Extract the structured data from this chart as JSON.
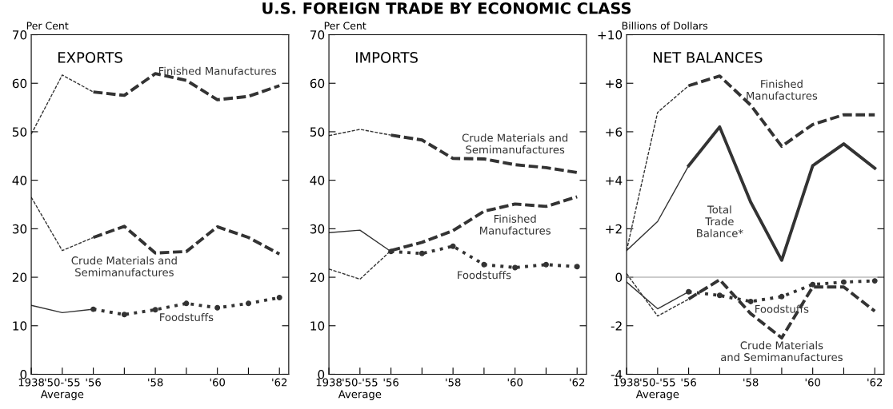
{
  "chart_data": [
    {
      "type": "line",
      "title": "EXPORTS",
      "ylabel": "Per Cent",
      "annotations": [
        "U.S. FOREIGN TRADE BY ECONOMIC CLASS"
      ],
      "categories": [
        "1938",
        "'50-'55\nAverage",
        "'56",
        null,
        "'58",
        null,
        "'60",
        null,
        "'62"
      ],
      "ylim": [
        0,
        70
      ],
      "yticks": [
        0,
        10,
        20,
        30,
        40,
        50,
        60,
        70
      ],
      "series": [
        {
          "color": "#333333",
          "line_style": "dashed",
          "values": [
            49.5,
            61.7,
            58.2,
            null,
            null,
            null,
            null,
            null,
            null
          ]
        },
        {
          "name": "Finished Manufactures",
          "color": "#333333",
          "line_style": "dashed",
          "values": [
            null,
            null,
            58.2,
            57.5,
            62,
            60.6,
            56.6,
            57.3,
            59.5
          ]
        },
        {
          "color": "#333333",
          "line_style": "dashed",
          "values": [
            36.5,
            25.5,
            28.2,
            null,
            null,
            null,
            null,
            null,
            null
          ]
        },
        {
          "name": "Crude Materials and\nSemimanufactures",
          "color": "#333333",
          "line_style": "dashed",
          "values": [
            null,
            null,
            28.2,
            30.5,
            25,
            25.3,
            30.4,
            28.2,
            24.8
          ]
        },
        {
          "color": "#333333",
          "line_style": "solid",
          "values": [
            14.2,
            12.7,
            13.4,
            null,
            null,
            null,
            null,
            null,
            null
          ]
        },
        {
          "name": "Foodstuffs",
          "color": "#333333",
          "line_style": "dotted",
          "marker": "circle",
          "values": [
            null,
            null,
            13.4,
            12.3,
            13.3,
            14.6,
            13.7,
            14.6,
            15.8
          ]
        }
      ]
    },
    {
      "type": "line",
      "title": "IMPORTS",
      "ylabel": "Per Cent",
      "categories": [
        "1938",
        "'50-'55\nAverage",
        "'56",
        null,
        "'58",
        null,
        "'60",
        null,
        "'62"
      ],
      "ylim": [
        0,
        70
      ],
      "yticks": [
        0,
        10,
        20,
        30,
        40,
        50,
        60,
        70
      ],
      "series": [
        {
          "color": "#333333",
          "line_style": "dashed",
          "values": [
            49.2,
            50.5,
            49.3,
            null,
            null,
            null,
            null,
            null,
            null
          ]
        },
        {
          "name": "Crude Materials and\nSemimanufactures",
          "color": "#333333",
          "line_style": "dashed",
          "values": [
            null,
            null,
            49.3,
            48.3,
            44.5,
            44.4,
            43.2,
            42.6,
            41.6
          ]
        },
        {
          "color": "#333333",
          "line_style": "dashed",
          "values": [
            21.7,
            19.6,
            25.5,
            null,
            null,
            null,
            null,
            null,
            null
          ]
        },
        {
          "name": "Finished\nManufactures",
          "color": "#333333",
          "line_style": "dashed",
          "values": [
            null,
            null,
            25.5,
            27.2,
            29.6,
            33.6,
            35.1,
            34.6,
            36.6
          ]
        },
        {
          "color": "#333333",
          "line_style": "solid",
          "values": [
            29.2,
            29.7,
            25.3,
            null,
            null,
            null,
            null,
            null,
            null
          ]
        },
        {
          "name": "Foodstuffs",
          "color": "#333333",
          "line_style": "dotted",
          "marker": "circle",
          "values": [
            null,
            null,
            25.3,
            24.9,
            26.4,
            22.6,
            22.0,
            22.6,
            22.2
          ]
        }
      ]
    },
    {
      "type": "line",
      "title": "NET BALANCES",
      "ylabel": "Billions of Dollars",
      "categories": [
        "1938",
        "'50-'55\nAverage",
        "'56",
        null,
        "'58",
        null,
        "'60",
        null,
        "'62"
      ],
      "ylim": [
        -4,
        10
      ],
      "yticks": [
        {
          "value": -4,
          "label": "-4"
        },
        {
          "value": -2,
          "label": "-2"
        },
        0,
        {
          "value": 2,
          "label": "+2"
        },
        {
          "value": 4,
          "label": "+4"
        },
        {
          "value": 6,
          "label": "+6"
        },
        {
          "value": 8,
          "label": "+8"
        },
        {
          "value": 10,
          "label": "+10"
        }
      ],
      "ref_lines": [
        {
          "axis": "y",
          "value": 0,
          "color": "#999999"
        }
      ],
      "series": [
        {
          "color": "#333333",
          "line_style": "dashed",
          "values": [
            1.1,
            6.8,
            7.9,
            null,
            null,
            null,
            null,
            null,
            null
          ]
        },
        {
          "name": "Finished\nManufactures",
          "color": "#333333",
          "line_style": "dashed",
          "values": [
            null,
            null,
            7.9,
            8.3,
            7.1,
            5.4,
            6.3,
            6.7,
            6.7
          ]
        },
        {
          "color": "#333333",
          "line_style": "solid",
          "values": [
            1.1,
            2.3,
            4.6,
            null,
            null,
            null,
            null,
            null,
            null
          ]
        },
        {
          "name": "Total\nTrade\nBalance*",
          "color": "#333333",
          "line_style": "solid",
          "values": [
            null,
            null,
            4.6,
            6.2,
            3.1,
            0.7,
            4.6,
            5.5,
            4.5
          ]
        },
        {
          "color": "#333333",
          "line_style": "solid",
          "values": [
            -0.2,
            -1.3,
            -0.6,
            null,
            null,
            null,
            null,
            null,
            null
          ]
        },
        {
          "name": "Foodstuffs",
          "color": "#333333",
          "line_style": "dotted",
          "marker": "circle",
          "values": [
            null,
            null,
            -0.6,
            -0.75,
            -1.0,
            -0.8,
            -0.3,
            -0.2,
            -0.15
          ]
        },
        {
          "color": "#333333",
          "line_style": "dashed",
          "values": [
            0.15,
            -1.6,
            -0.9,
            null,
            null,
            null,
            null,
            null,
            null
          ]
        },
        {
          "name": "Crude Materials\nand Semimanufactures",
          "color": "#333333",
          "line_style": "dashed",
          "values": [
            null,
            null,
            -0.9,
            -0.1,
            -1.5,
            -2.5,
            -0.4,
            -0.4,
            -1.4
          ]
        }
      ]
    }
  ]
}
